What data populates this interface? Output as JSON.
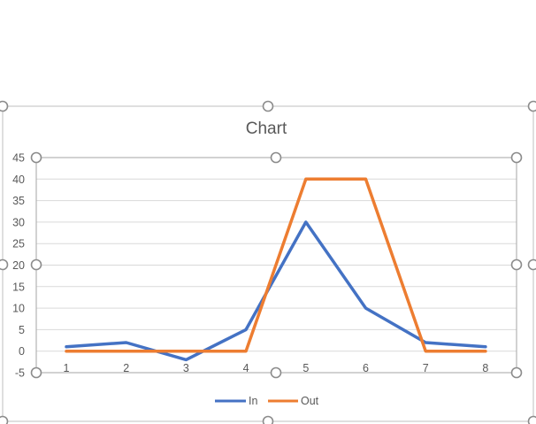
{
  "chart_data": {
    "type": "line",
    "title": "Chart",
    "x": [
      "1",
      "2",
      "3",
      "4",
      "5",
      "6",
      "7",
      "8"
    ],
    "ylim": [
      -5,
      45
    ],
    "y_ticks": [
      "45",
      "40",
      "35",
      "30",
      "25",
      "20",
      "15",
      "10",
      "5",
      "0",
      "-5"
    ],
    "y_tick_values": [
      45,
      40,
      35,
      30,
      25,
      20,
      15,
      10,
      5,
      0,
      -5
    ],
    "grid": true,
    "legend": "bottom",
    "series": [
      {
        "name": "In",
        "color": "#4472c4",
        "values": [
          1,
          2,
          -2,
          5,
          30,
          10,
          2,
          1
        ]
      },
      {
        "name": "Out",
        "color": "#ed7d31",
        "values": [
          0,
          0,
          0,
          0,
          40,
          40,
          0,
          0
        ]
      }
    ]
  },
  "colors": {
    "gridline": "#d9d9d9",
    "axis_text": "#595959",
    "selection_frame": "#8c8c8c"
  }
}
